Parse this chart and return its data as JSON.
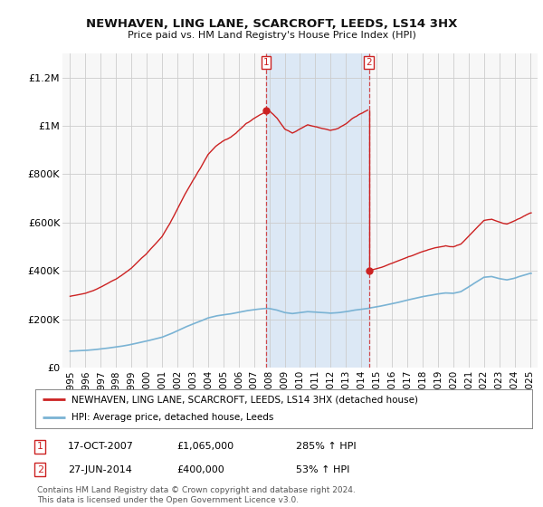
{
  "title": "NEWHAVEN, LING LANE, SCARCROFT, LEEDS, LS14 3HX",
  "subtitle": "Price paid vs. HM Land Registry's House Price Index (HPI)",
  "legend_line1": "NEWHAVEN, LING LANE, SCARCROFT, LEEDS, LS14 3HX (detached house)",
  "legend_line2": "HPI: Average price, detached house, Leeds",
  "footer1": "Contains HM Land Registry data © Crown copyright and database right 2024.",
  "footer2": "This data is licensed under the Open Government Licence v3.0.",
  "annotation1_date": "17-OCT-2007",
  "annotation1_price": "£1,065,000",
  "annotation1_hpi": "285% ↑ HPI",
  "annotation2_date": "27-JUN-2014",
  "annotation2_price": "£400,000",
  "annotation2_hpi": "53% ↑ HPI",
  "sale1_year": 2007.79,
  "sale1_price": 1065000,
  "sale2_year": 2014.49,
  "sale2_price": 400000,
  "ylim": [
    0,
    1300000
  ],
  "xlim_start": 1994.5,
  "xlim_end": 2025.5,
  "hpi_color": "#7ab3d4",
  "price_color": "#cc2222",
  "background_color": "#ffffff",
  "plot_bg_color": "#f7f7f7",
  "span_color": "#dce8f5",
  "yticks": [
    0,
    200000,
    400000,
    600000,
    800000,
    1000000,
    1200000
  ],
  "ytick_labels": [
    "£0",
    "£200K",
    "£400K",
    "£600K",
    "£800K",
    "£1M",
    "£1.2M"
  ],
  "xticks": [
    1995,
    1996,
    1997,
    1998,
    1999,
    2000,
    2001,
    2002,
    2003,
    2004,
    2005,
    2006,
    2007,
    2008,
    2009,
    2010,
    2011,
    2012,
    2013,
    2014,
    2015,
    2016,
    2017,
    2018,
    2019,
    2020,
    2021,
    2022,
    2023,
    2024,
    2025
  ]
}
